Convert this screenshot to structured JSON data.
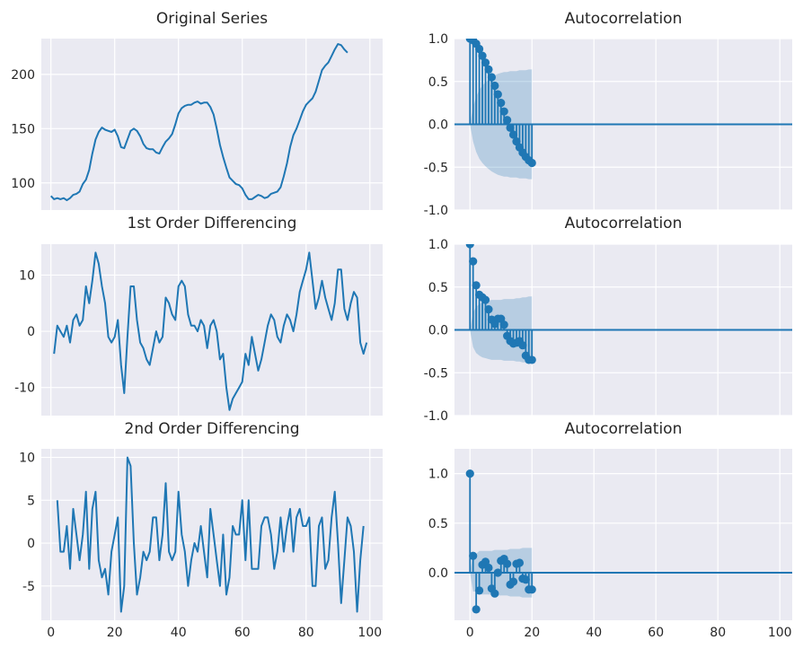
{
  "colors": {
    "line": "#1f77b4",
    "band": "#1f77b4",
    "axes_bg": "#eaeaf2",
    "grid": "#ffffff"
  },
  "chart_data": [
    {
      "id": "orig",
      "type": "line",
      "title": "Original Series",
      "xlim": [
        -3,
        104
      ],
      "ylim": [
        75,
        233
      ],
      "yticks": [
        100,
        150,
        200
      ],
      "ytick_labels": [
        "100",
        "150",
        "200"
      ],
      "xticks": [
        0,
        20,
        40,
        60,
        80,
        100
      ],
      "x_start": 0,
      "values": [
        88,
        85,
        86,
        85,
        86,
        84,
        86,
        89,
        90,
        92,
        99,
        103,
        112,
        127,
        140,
        147,
        151,
        149,
        148,
        147,
        149,
        143,
        133,
        132,
        140,
        148,
        150,
        148,
        143,
        136,
        132,
        131,
        131,
        128,
        127,
        133,
        138,
        141,
        145,
        154,
        164,
        169,
        171,
        172,
        172,
        174,
        175,
        173,
        174,
        174,
        170,
        163,
        150,
        135,
        124,
        114,
        105,
        102,
        99,
        98,
        95,
        89,
        85,
        85,
        87,
        89,
        88,
        86,
        87,
        90,
        91,
        92,
        96,
        106,
        118,
        133,
        144,
        150,
        158,
        166,
        172,
        175,
        178,
        184,
        194,
        204,
        208,
        211,
        217,
        223,
        228,
        227,
        223,
        220
      ]
    },
    {
      "id": "acf0",
      "type": "stem",
      "title": "Autocorrelation",
      "xlim": [
        -5,
        104
      ],
      "ylim": [
        -1.0,
        1.0
      ],
      "yticks": [
        -1.0,
        -0.5,
        0.0,
        0.5,
        1.0
      ],
      "ytick_labels": [
        "-1.0",
        "-0.5",
        "0.0",
        "0.5",
        "1.0"
      ],
      "xticks": [
        0,
        20,
        40,
        60,
        80,
        100
      ],
      "lags": [
        0,
        1,
        2,
        3,
        4,
        5,
        6,
        7,
        8,
        9,
        10,
        11,
        12,
        13,
        14,
        15,
        16,
        17,
        18,
        19,
        20
      ],
      "values": [
        1.0,
        0.98,
        0.94,
        0.88,
        0.8,
        0.72,
        0.64,
        0.55,
        0.45,
        0.35,
        0.25,
        0.15,
        0.05,
        -0.04,
        -0.12,
        -0.2,
        -0.27,
        -0.33,
        -0.38,
        -0.42,
        -0.45
      ],
      "conf_upper": [
        0.0,
        0.2,
        0.32,
        0.4,
        0.45,
        0.49,
        0.52,
        0.55,
        0.57,
        0.59,
        0.6,
        0.61,
        0.61,
        0.62,
        0.62,
        0.62,
        0.63,
        0.63,
        0.63,
        0.64,
        0.64
      ],
      "conf_lower": [
        0.0,
        -0.2,
        -0.32,
        -0.4,
        -0.45,
        -0.49,
        -0.52,
        -0.55,
        -0.57,
        -0.59,
        -0.6,
        -0.61,
        -0.61,
        -0.62,
        -0.62,
        -0.62,
        -0.63,
        -0.63,
        -0.63,
        -0.64,
        -0.64
      ]
    },
    {
      "id": "diff1",
      "type": "line",
      "title": "1st Order Differencing",
      "xlim": [
        -3,
        104
      ],
      "ylim": [
        -15,
        15.5
      ],
      "yticks": [
        -10,
        0,
        10
      ],
      "ytick_labels": [
        "-10",
        "0",
        "10"
      ],
      "xticks": [
        0,
        20,
        40,
        60,
        80,
        100
      ],
      "x_start": 1,
      "values": [
        -4,
        1,
        0,
        -1,
        1,
        -2,
        2,
        3,
        1,
        2,
        8,
        5,
        9,
        14,
        12,
        8,
        5,
        -1,
        -2,
        -1,
        2,
        -6,
        -11,
        -1,
        8,
        8,
        2,
        -2,
        -3,
        -5,
        -6,
        -3,
        0,
        -2,
        -1,
        6,
        5,
        3,
        2,
        8,
        9,
        8,
        3,
        1,
        1,
        0,
        2,
        1,
        -3,
        1,
        2,
        0,
        -5,
        -4,
        -10,
        -14,
        -12,
        -11,
        -10,
        -9,
        -4,
        -6,
        -1,
        -4,
        -7,
        -5,
        -2,
        1,
        3,
        2,
        -1,
        -2,
        1,
        3,
        2,
        0,
        3,
        7,
        9,
        11,
        14,
        9,
        4,
        6,
        9,
        6,
        4,
        2,
        5,
        11,
        11,
        4,
        2,
        5,
        7,
        6,
        -2,
        -4,
        -2
      ]
    },
    {
      "id": "acf1",
      "type": "stem",
      "title": "Autocorrelation",
      "xlim": [
        -5,
        104
      ],
      "ylim": [
        -1.0,
        1.0
      ],
      "yticks": [
        -1.0,
        -0.5,
        0.0,
        0.5,
        1.0
      ],
      "ytick_labels": [
        "-1.0",
        "-0.5",
        "0.0",
        "0.5",
        "1.0"
      ],
      "xticks": [
        0,
        20,
        40,
        60,
        80,
        100
      ],
      "lags": [
        0,
        1,
        2,
        3,
        4,
        5,
        6,
        7,
        8,
        9,
        10,
        11,
        12,
        13,
        14,
        15,
        16,
        17,
        18,
        19,
        20
      ],
      "values": [
        1.0,
        0.8,
        0.52,
        0.41,
        0.38,
        0.35,
        0.24,
        0.12,
        0.07,
        0.13,
        0.13,
        0.06,
        -0.07,
        -0.13,
        -0.16,
        -0.15,
        -0.13,
        -0.18,
        -0.3,
        -0.35,
        -0.35
      ],
      "conf_upper": [
        0.0,
        0.2,
        0.27,
        0.3,
        0.32,
        0.33,
        0.34,
        0.35,
        0.35,
        0.35,
        0.35,
        0.36,
        0.36,
        0.36,
        0.36,
        0.37,
        0.37,
        0.38,
        0.38,
        0.39,
        0.39
      ],
      "conf_lower": [
        0.0,
        -0.2,
        -0.27,
        -0.3,
        -0.32,
        -0.33,
        -0.34,
        -0.35,
        -0.35,
        -0.35,
        -0.35,
        -0.36,
        -0.36,
        -0.36,
        -0.36,
        -0.37,
        -0.37,
        -0.38,
        -0.38,
        -0.39,
        -0.39
      ]
    },
    {
      "id": "diff2",
      "type": "line",
      "title": "2nd Order Differencing",
      "xlim": [
        -3,
        104
      ],
      "ylim": [
        -9,
        11
      ],
      "yticks": [
        -5,
        0,
        5,
        10
      ],
      "ytick_labels": [
        "-5",
        "0",
        "5",
        "10"
      ],
      "xticks": [
        0,
        20,
        40,
        60,
        80,
        100
      ],
      "xtick_labels": [
        "0",
        "20",
        "40",
        "60",
        "80",
        "100"
      ],
      "x_start": 2,
      "values": [
        5,
        -1,
        -1,
        2,
        -3,
        4,
        1,
        -2,
        1,
        6,
        -3,
        4,
        6,
        -2,
        -4,
        -3,
        -6,
        -1,
        1,
        3,
        -8,
        -5,
        10,
        9,
        0,
        -6,
        -4,
        -1,
        -2,
        -1,
        3,
        3,
        -2,
        1,
        7,
        -1,
        -2,
        -1,
        6,
        1,
        -1,
        -5,
        -2,
        0,
        -1,
        2,
        -1,
        -4,
        4,
        1,
        -2,
        -5,
        1,
        -6,
        -4,
        2,
        1,
        1,
        5,
        -2,
        5,
        -3,
        -3,
        -3,
        2,
        3,
        3,
        1,
        -3,
        -1,
        3,
        -1,
        2,
        4,
        -1,
        3,
        4,
        2,
        2,
        3,
        -5,
        -5,
        2,
        3,
        -3,
        -2,
        3,
        6,
        0,
        -7,
        -2,
        3,
        2,
        -1,
        -8,
        -2,
        2
      ],
      "xlabel": ""
    },
    {
      "id": "acf2",
      "type": "stem",
      "title": "Autocorrelation",
      "xlim": [
        -5,
        104
      ],
      "ylim": [
        -0.48,
        1.25
      ],
      "yticks": [
        0.0,
        0.5,
        1.0
      ],
      "ytick_labels": [
        "0.0",
        "0.5",
        "1.0"
      ],
      "xticks": [
        0,
        20,
        40,
        60,
        80,
        100
      ],
      "xtick_labels": [
        "0",
        "20",
        "40",
        "60",
        "80",
        "100"
      ],
      "lags": [
        0,
        1,
        2,
        3,
        4,
        5,
        6,
        7,
        8,
        9,
        10,
        11,
        12,
        13,
        14,
        15,
        16,
        17,
        18,
        19,
        20
      ],
      "values": [
        1.0,
        0.17,
        -0.37,
        -0.18,
        0.08,
        0.11,
        0.05,
        -0.16,
        -0.21,
        0.0,
        0.12,
        0.14,
        0.09,
        -0.12,
        -0.09,
        0.09,
        0.1,
        -0.06,
        -0.07,
        -0.17,
        -0.17
      ],
      "conf_upper": [
        0.0,
        0.19,
        0.19,
        0.22,
        0.22,
        0.22,
        0.22,
        0.22,
        0.23,
        0.23,
        0.23,
        0.23,
        0.23,
        0.24,
        0.24,
        0.24,
        0.24,
        0.25,
        0.25,
        0.25,
        0.25
      ],
      "conf_lower": [
        0.0,
        -0.19,
        -0.19,
        -0.22,
        -0.22,
        -0.22,
        -0.22,
        -0.22,
        -0.23,
        -0.23,
        -0.23,
        -0.23,
        -0.23,
        -0.24,
        -0.24,
        -0.24,
        -0.24,
        -0.25,
        -0.25,
        -0.25,
        -0.25
      ]
    }
  ]
}
